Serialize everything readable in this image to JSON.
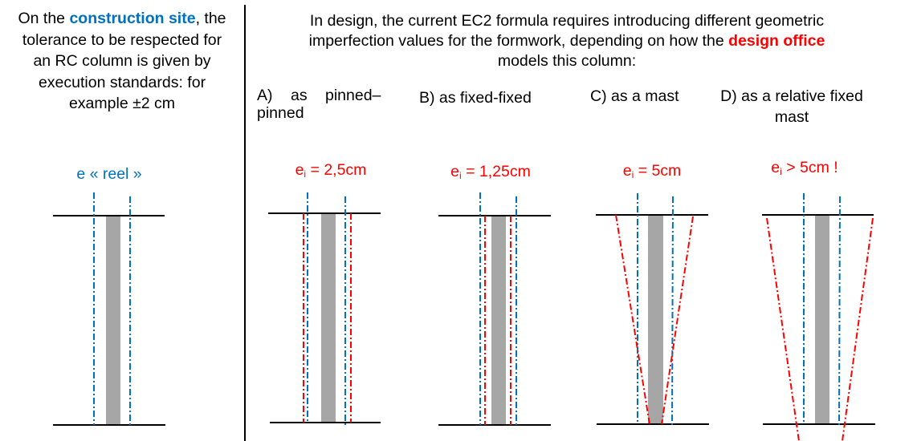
{
  "left": {
    "line1_pre": "On the ",
    "line1_highlight": "construction site",
    "line1_post": ", the",
    "line2": "tolerance to be respected for",
    "line3": "an RC column is given by",
    "line4": "execution standards: for",
    "line5": "example ±2 cm",
    "label": "e « reel »"
  },
  "right": {
    "line1": "In design, the current EC2 formula requires introducing different geometric",
    "line2_pre": "imperfection values for the formwork, depending on how the ",
    "line2_highlight": "design office",
    "line3": "models this column:",
    "cases": [
      {
        "label_a": "A)",
        "label_b": "as",
        "label_c": "pinned–",
        "label_d": "pinned",
        "e_sym": "e",
        "e_sub": "i",
        "e_val": " = 2,5cm"
      },
      {
        "label": "B) as fixed-fixed",
        "e_sym": "e",
        "e_sub": "i",
        "e_val": " = 1,25cm"
      },
      {
        "label": "C) as a mast",
        "e_sym": "e",
        "e_sub": "i",
        "e_val": " = 5cm"
      },
      {
        "label_1": "D) as a relative fixed",
        "label_2": "mast",
        "e_sym": "e",
        "e_sub": "i",
        "e_val": " > 5cm !"
      }
    ]
  },
  "colors": {
    "site": "#0070c0",
    "design": "#ff0000",
    "column": "#a6a6a6",
    "lines": "#000000"
  }
}
